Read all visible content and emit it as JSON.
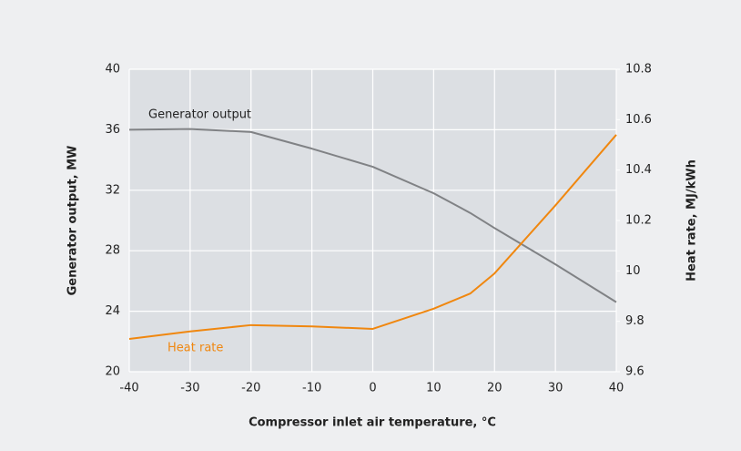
{
  "chart_data": {
    "type": "line",
    "x": [
      -40,
      -30,
      -20,
      -10,
      0,
      10,
      16,
      20,
      30,
      40
    ],
    "series": [
      {
        "name": "Generator output",
        "color": "#808285",
        "axis": "y",
        "values": [
          36.0,
          36.05,
          35.85,
          34.75,
          33.55,
          31.8,
          30.5,
          29.5,
          27.1,
          24.6
        ]
      },
      {
        "name": "Heat rate",
        "color": "#f0870f",
        "axis": "y2",
        "values": [
          9.73,
          9.76,
          9.785,
          9.78,
          9.77,
          9.85,
          9.91,
          9.99,
          10.26,
          10.54
        ]
      }
    ],
    "xlabel": "Compressor inlet air temperature, °C",
    "ylabel": "Generator output, MW",
    "y2label": "Heat rate, MJ/kWh",
    "xlim": [
      -40,
      40
    ],
    "xticks": [
      -40,
      -30,
      -20,
      -10,
      0,
      10,
      20,
      30,
      40
    ],
    "ylim": [
      20,
      40
    ],
    "yticks": [
      20,
      24,
      28,
      32,
      36,
      40
    ],
    "y2lim": [
      9.6,
      10.8
    ],
    "y2ticks": [
      9.6,
      9.8,
      10,
      10.2,
      10.4,
      10.6,
      10.8
    ],
    "grid": true
  }
}
